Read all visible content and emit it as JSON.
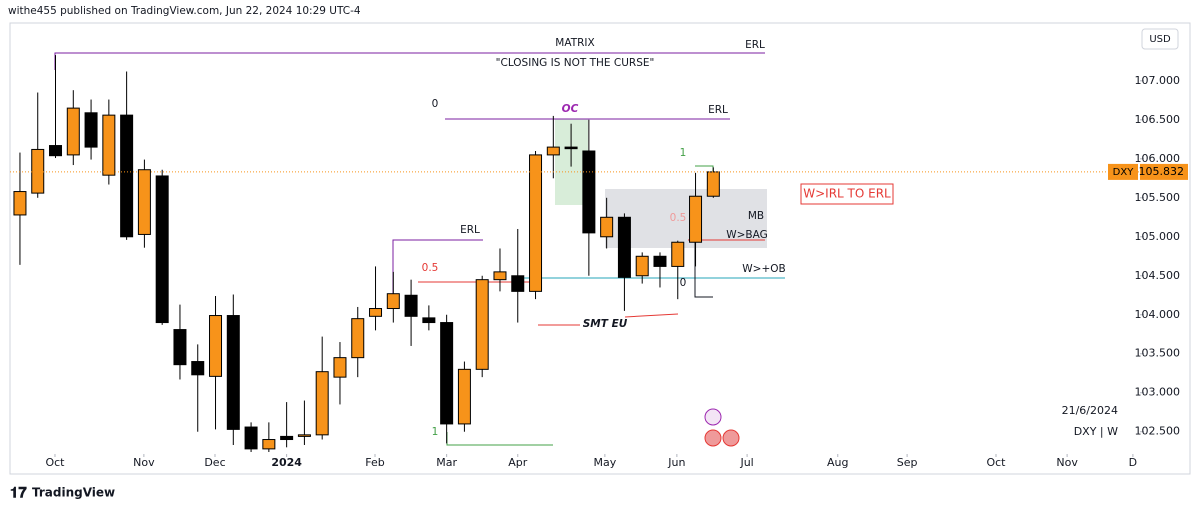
{
  "header": "withe455 published on TradingView.com, Jun 22, 2024 10:29 UTC-4",
  "chart_data": {
    "type": "candlestick",
    "currency": "USD",
    "symbol": "DXY",
    "date_label": "21/6/2024",
    "interval_label": "DXY | W",
    "up_color": "#f7931a",
    "down_color": "#000000",
    "categories": [
      null,
      null,
      null,
      null,
      null,
      null,
      null,
      null,
      null,
      null,
      null,
      null,
      null,
      null,
      null,
      null,
      null,
      null,
      null,
      null,
      null,
      null,
      null,
      null,
      null,
      null,
      null,
      null,
      null,
      null,
      null,
      null,
      null,
      null,
      null,
      null,
      null,
      null,
      null,
      null
    ],
    "open": [
      105.28,
      105.56,
      106.17,
      106.05,
      106.59,
      105.79,
      106.56,
      105.03,
      105.78,
      103.81,
      103.4,
      103.21,
      103.99,
      102.56,
      102.28,
      102.44,
      102.44,
      102.46,
      103.2,
      103.45,
      103.98,
      104.08,
      104.25,
      103.96,
      103.9,
      102.6,
      103.3,
      104.45,
      104.5,
      104.3,
      106.05,
      106.15,
      106.1,
      105.0,
      105.25,
      104.5,
      104.75,
      104.62,
      104.93,
      105.52
    ],
    "high": [
      106.08,
      106.85,
      107.33,
      106.88,
      106.76,
      106.76,
      107.12,
      105.99,
      105.86,
      104.13,
      103.62,
      104.24,
      104.26,
      102.62,
      102.62,
      102.88,
      102.9,
      103.72,
      103.65,
      104.1,
      104.62,
      104.55,
      104.45,
      104.12,
      104.0,
      103.4,
      104.5,
      104.85,
      105.1,
      106.1,
      106.55,
      106.45,
      106.5,
      105.5,
      105.3,
      104.8,
      104.8,
      104.95,
      105.82,
      105.89
    ],
    "low": [
      104.64,
      105.5,
      106.01,
      105.92,
      105.99,
      105.67,
      104.96,
      104.86,
      103.87,
      103.17,
      102.5,
      102.53,
      102.33,
      102.24,
      102.24,
      102.3,
      102.33,
      102.4,
      102.85,
      103.2,
      103.8,
      103.9,
      103.6,
      103.8,
      102.35,
      102.5,
      103.2,
      104.3,
      103.9,
      104.2,
      105.75,
      105.9,
      104.5,
      104.85,
      104.05,
      104.4,
      104.35,
      104.2,
      104.62,
      105.5
    ],
    "close": [
      105.58,
      106.12,
      106.04,
      106.65,
      106.15,
      106.56,
      105.0,
      105.86,
      103.9,
      103.36,
      103.23,
      103.99,
      102.53,
      102.28,
      102.4,
      102.4,
      102.46,
      103.27,
      103.45,
      103.95,
      104.08,
      104.27,
      103.98,
      103.9,
      102.6,
      103.3,
      104.45,
      104.55,
      104.3,
      106.05,
      106.15,
      106.13,
      105.05,
      105.25,
      104.48,
      104.75,
      104.62,
      104.93,
      105.52,
      105.832
    ],
    "ylim": [
      102.24,
      107.78
    ],
    "yticks": [
      {
        "value": 102.5,
        "label": "102.500"
      },
      {
        "value": 103,
        "label": "103.000"
      },
      {
        "value": 103.5,
        "label": "103.500"
      },
      {
        "value": 104,
        "label": "104.000"
      },
      {
        "value": 104.5,
        "label": "104.500"
      },
      {
        "value": 105,
        "label": "105.000"
      },
      {
        "value": 105.5,
        "label": "105.500"
      },
      {
        "value": 106,
        "label": "106.000"
      },
      {
        "value": 106.5,
        "label": "106.500"
      },
      {
        "value": 107,
        "label": "107.000"
      }
    ],
    "xlim": [
      -0.56,
      63
    ],
    "xticks": [
      {
        "value": 1.97,
        "label": "Oct"
      },
      {
        "value": 6.97,
        "label": "Nov"
      },
      {
        "value": 10.97,
        "label": "Dec"
      },
      {
        "value": 15,
        "label": "2024"
      },
      {
        "value": 19.97,
        "label": "Feb"
      },
      {
        "value": 24,
        "label": "Mar"
      },
      {
        "value": 28,
        "label": "Apr"
      },
      {
        "value": 32.9,
        "label": "May"
      },
      {
        "value": 36.95,
        "label": "Jun"
      },
      {
        "value": 40.9,
        "label": "Jul"
      },
      {
        "value": 46,
        "label": "Aug"
      },
      {
        "value": 49.9,
        "label": "Sep"
      },
      {
        "value": 54.9,
        "label": "Oct"
      },
      {
        "value": 58.9,
        "label": "Nov"
      },
      {
        "value": 62.6,
        "label": "D"
      }
    ],
    "annotations": [
      "MATRIX",
      "ERL",
      "\"CLOSING IS NOT THE CURSE\"",
      "0",
      "OC",
      "ERL",
      "1",
      "W>IRL TO ERL",
      "0.5",
      "MB",
      "W>BAG",
      "ERL",
      "0.5",
      "W>+OB",
      "0",
      "SMT EU",
      "1"
    ]
  },
  "footer": "TradingView"
}
